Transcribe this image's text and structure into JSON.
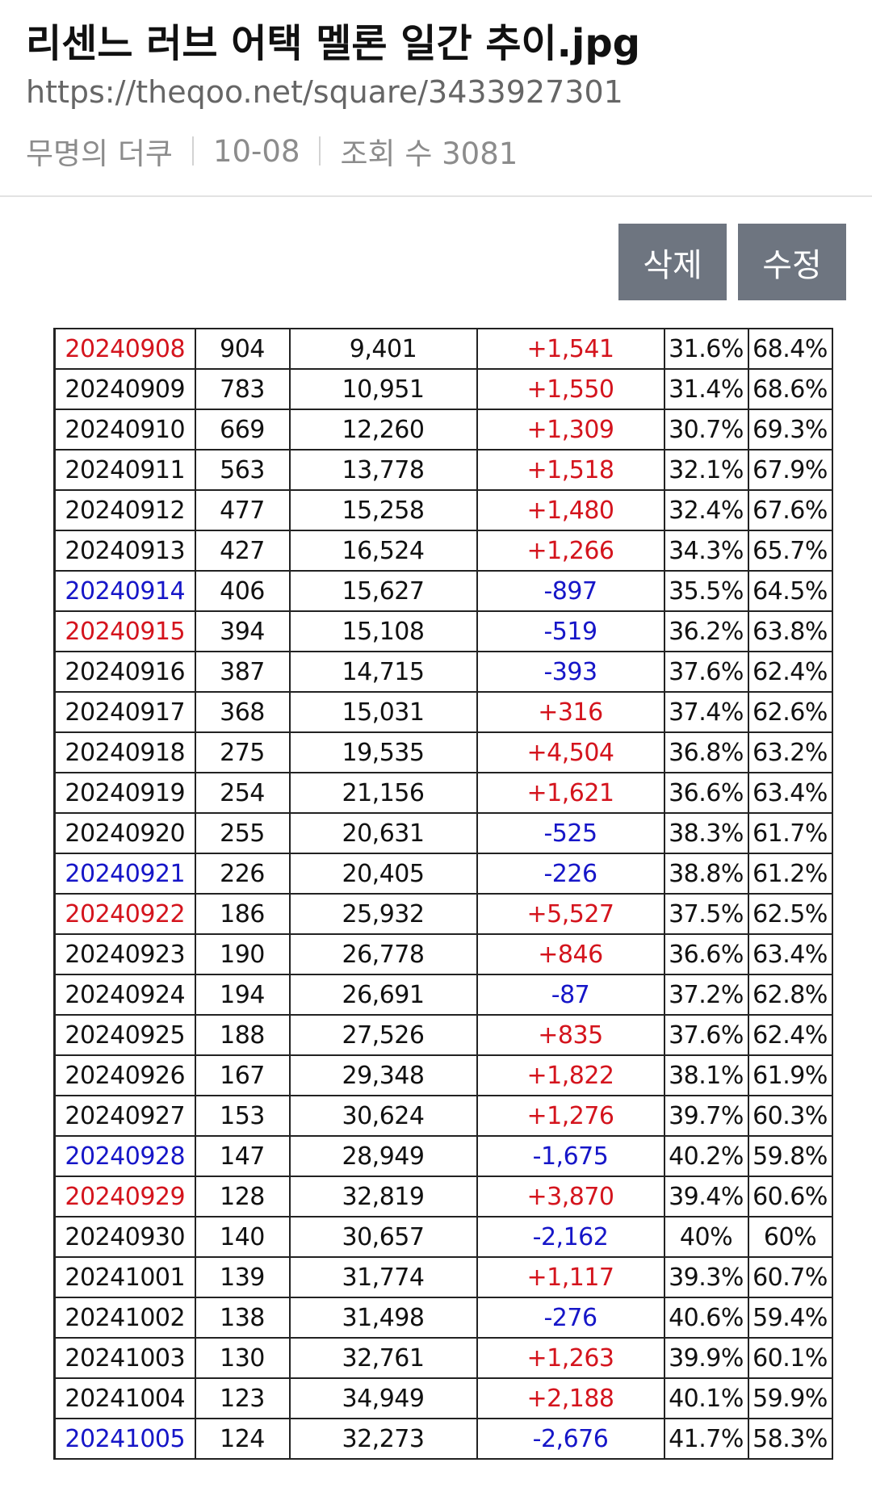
{
  "post": {
    "title": "리센느 러브 어택 멜론 일간 추이.jpg",
    "url": "https://theqoo.net/square/3433927301",
    "author": "무명의 더쿠",
    "date": "10-08",
    "views_label": "조회 수 3081"
  },
  "actions": {
    "delete_label": "삭제",
    "edit_label": "수정"
  },
  "colors": {
    "red": "#d4141d",
    "blue": "#1616c8",
    "button": "#6e7580"
  },
  "table": {
    "rows": [
      {
        "date": "20240908",
        "date_color": "red",
        "rank": "904",
        "listeners": "9,401",
        "change": "+1,541",
        "change_color": "red",
        "pct_a": "31.6%",
        "pct_b": "68.4%"
      },
      {
        "date": "20240909",
        "date_color": "black",
        "rank": "783",
        "listeners": "10,951",
        "change": "+1,550",
        "change_color": "red",
        "pct_a": "31.4%",
        "pct_b": "68.6%"
      },
      {
        "date": "20240910",
        "date_color": "black",
        "rank": "669",
        "listeners": "12,260",
        "change": "+1,309",
        "change_color": "red",
        "pct_a": "30.7%",
        "pct_b": "69.3%"
      },
      {
        "date": "20240911",
        "date_color": "black",
        "rank": "563",
        "listeners": "13,778",
        "change": "+1,518",
        "change_color": "red",
        "pct_a": "32.1%",
        "pct_b": "67.9%"
      },
      {
        "date": "20240912",
        "date_color": "black",
        "rank": "477",
        "listeners": "15,258",
        "change": "+1,480",
        "change_color": "red",
        "pct_a": "32.4%",
        "pct_b": "67.6%"
      },
      {
        "date": "20240913",
        "date_color": "black",
        "rank": "427",
        "listeners": "16,524",
        "change": "+1,266",
        "change_color": "red",
        "pct_a": "34.3%",
        "pct_b": "65.7%"
      },
      {
        "date": "20240914",
        "date_color": "blue",
        "rank": "406",
        "listeners": "15,627",
        "change": "-897",
        "change_color": "blue",
        "pct_a": "35.5%",
        "pct_b": "64.5%"
      },
      {
        "date": "20240915",
        "date_color": "red",
        "rank": "394",
        "listeners": "15,108",
        "change": "-519",
        "change_color": "blue",
        "pct_a": "36.2%",
        "pct_b": "63.8%"
      },
      {
        "date": "20240916",
        "date_color": "black",
        "rank": "387",
        "listeners": "14,715",
        "change": "-393",
        "change_color": "blue",
        "pct_a": "37.6%",
        "pct_b": "62.4%"
      },
      {
        "date": "20240917",
        "date_color": "black",
        "rank": "368",
        "listeners": "15,031",
        "change": "+316",
        "change_color": "red",
        "pct_a": "37.4%",
        "pct_b": "62.6%"
      },
      {
        "date": "20240918",
        "date_color": "black",
        "rank": "275",
        "listeners": "19,535",
        "change": "+4,504",
        "change_color": "red",
        "pct_a": "36.8%",
        "pct_b": "63.2%"
      },
      {
        "date": "20240919",
        "date_color": "black",
        "rank": "254",
        "listeners": "21,156",
        "change": "+1,621",
        "change_color": "red",
        "pct_a": "36.6%",
        "pct_b": "63.4%"
      },
      {
        "date": "20240920",
        "date_color": "black",
        "rank": "255",
        "listeners": "20,631",
        "change": "-525",
        "change_color": "blue",
        "pct_a": "38.3%",
        "pct_b": "61.7%"
      },
      {
        "date": "20240921",
        "date_color": "blue",
        "rank": "226",
        "listeners": "20,405",
        "change": "-226",
        "change_color": "blue",
        "pct_a": "38.8%",
        "pct_b": "61.2%"
      },
      {
        "date": "20240922",
        "date_color": "red",
        "rank": "186",
        "listeners": "25,932",
        "change": "+5,527",
        "change_color": "red",
        "pct_a": "37.5%",
        "pct_b": "62.5%"
      },
      {
        "date": "20240923",
        "date_color": "black",
        "rank": "190",
        "listeners": "26,778",
        "change": "+846",
        "change_color": "red",
        "pct_a": "36.6%",
        "pct_b": "63.4%"
      },
      {
        "date": "20240924",
        "date_color": "black",
        "rank": "194",
        "listeners": "26,691",
        "change": "-87",
        "change_color": "blue",
        "pct_a": "37.2%",
        "pct_b": "62.8%"
      },
      {
        "date": "20240925",
        "date_color": "black",
        "rank": "188",
        "listeners": "27,526",
        "change": "+835",
        "change_color": "red",
        "pct_a": "37.6%",
        "pct_b": "62.4%"
      },
      {
        "date": "20240926",
        "date_color": "black",
        "rank": "167",
        "listeners": "29,348",
        "change": "+1,822",
        "change_color": "red",
        "pct_a": "38.1%",
        "pct_b": "61.9%"
      },
      {
        "date": "20240927",
        "date_color": "black",
        "rank": "153",
        "listeners": "30,624",
        "change": "+1,276",
        "change_color": "red",
        "pct_a": "39.7%",
        "pct_b": "60.3%"
      },
      {
        "date": "20240928",
        "date_color": "blue",
        "rank": "147",
        "listeners": "28,949",
        "change": "-1,675",
        "change_color": "blue",
        "pct_a": "40.2%",
        "pct_b": "59.8%"
      },
      {
        "date": "20240929",
        "date_color": "red",
        "rank": "128",
        "listeners": "32,819",
        "change": "+3,870",
        "change_color": "red",
        "pct_a": "39.4%",
        "pct_b": "60.6%"
      },
      {
        "date": "20240930",
        "date_color": "black",
        "rank": "140",
        "listeners": "30,657",
        "change": "-2,162",
        "change_color": "blue",
        "pct_a": "40%",
        "pct_b": "60%"
      },
      {
        "date": "20241001",
        "date_color": "black",
        "rank": "139",
        "listeners": "31,774",
        "change": "+1,117",
        "change_color": "red",
        "pct_a": "39.3%",
        "pct_b": "60.7%"
      },
      {
        "date": "20241002",
        "date_color": "black",
        "rank": "138",
        "listeners": "31,498",
        "change": "-276",
        "change_color": "blue",
        "pct_a": "40.6%",
        "pct_b": "59.4%"
      },
      {
        "date": "20241003",
        "date_color": "black",
        "rank": "130",
        "listeners": "32,761",
        "change": "+1,263",
        "change_color": "red",
        "pct_a": "39.9%",
        "pct_b": "60.1%"
      },
      {
        "date": "20241004",
        "date_color": "black",
        "rank": "123",
        "listeners": "34,949",
        "change": "+2,188",
        "change_color": "red",
        "pct_a": "40.1%",
        "pct_b": "59.9%"
      },
      {
        "date": "20241005",
        "date_color": "blue",
        "rank": "124",
        "listeners": "32,273",
        "change": "-2,676",
        "change_color": "blue",
        "pct_a": "41.7%",
        "pct_b": "58.3%"
      }
    ]
  }
}
